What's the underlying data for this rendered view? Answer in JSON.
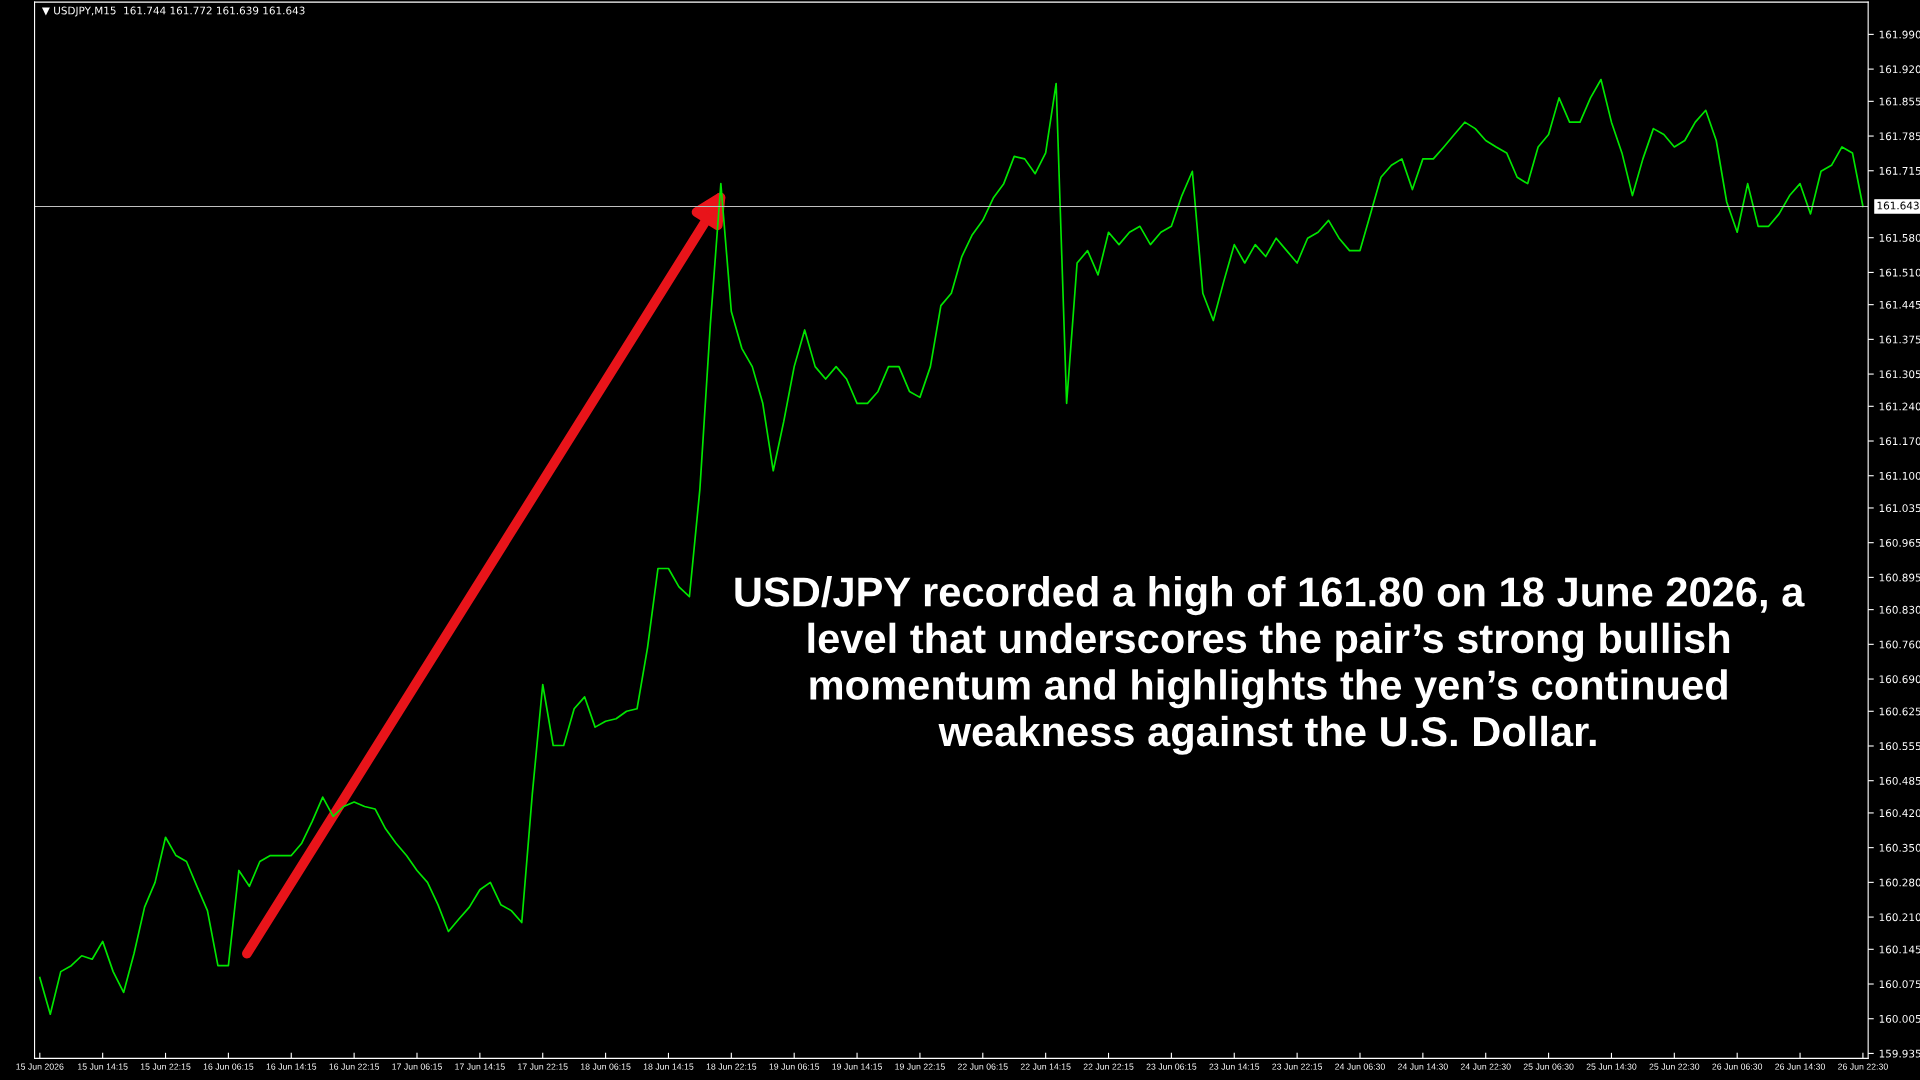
{
  "chart_data": {
    "type": "line",
    "title": "▼ USDJPY,M15  161.744 161.772 161.639 161.643",
    "categories": [
      "15 Jun 2026",
      null,
      null,
      null,
      null,
      null,
      "15 Jun 14:15",
      null,
      null,
      null,
      null,
      null,
      "15 Jun 22:15",
      null,
      null,
      null,
      null,
      null,
      "16 Jun 06:15",
      null,
      null,
      null,
      null,
      null,
      "16 Jun 14:15",
      null,
      null,
      null,
      null,
      null,
      "16 Jun 22:15",
      null,
      null,
      null,
      null,
      null,
      "17 Jun 06:15",
      null,
      null,
      null,
      null,
      null,
      "17 Jun 14:15",
      null,
      null,
      null,
      null,
      null,
      "17 Jun 22:15",
      null,
      null,
      null,
      null,
      null,
      "18 Jun 06:15",
      null,
      null,
      null,
      null,
      null,
      "18 Jun 14:15",
      null,
      null,
      null,
      null,
      null,
      "18 Jun 22:15",
      null,
      null,
      null,
      null,
      null,
      "19 Jun 06:15",
      null,
      null,
      null,
      null,
      null,
      "19 Jun 14:15",
      null,
      null,
      null,
      null,
      null,
      "19 Jun 22:15",
      null,
      null,
      null,
      null,
      null,
      "22 Jun 06:15",
      null,
      null,
      null,
      null,
      null,
      "22 Jun 14:15",
      null,
      null,
      null,
      null,
      null,
      "22 Jun 22:15",
      null,
      null,
      null,
      null,
      null,
      "23 Jun 06:15",
      null,
      null,
      null,
      null,
      null,
      "23 Jun 14:15",
      null,
      null,
      null,
      null,
      null,
      "23 Jun 22:15",
      null,
      null,
      null,
      null,
      null,
      "24 Jun 06:30",
      null,
      null,
      null,
      null,
      null,
      "24 Jun 14:30",
      null,
      null,
      null,
      null,
      null,
      "24 Jun 22:30",
      null,
      null,
      null,
      null,
      null,
      "25 Jun 06:30",
      null,
      null,
      null,
      null,
      null,
      "25 Jun 14:30",
      null,
      null,
      null,
      null,
      null,
      "25 Jun 22:30",
      null,
      null,
      null,
      null,
      null,
      "26 Jun 06:30",
      null,
      null,
      null,
      null,
      null,
      "26 Jun 14:30",
      null,
      null,
      null,
      null,
      null,
      "26 Jun 22:30"
    ],
    "series": [
      {
        "color": "#00e600",
        "values": [
          160.088,
          160.014,
          160.1,
          160.112,
          160.132,
          160.125,
          160.161,
          160.1,
          160.058,
          160.137,
          160.23,
          160.28,
          160.371,
          160.334,
          160.322,
          160.272,
          160.223,
          160.112,
          160.112,
          160.304,
          160.272,
          160.322,
          160.334,
          160.334,
          160.334,
          160.359,
          160.403,
          160.452,
          160.413,
          160.433,
          160.442,
          160.433,
          160.428,
          160.388,
          160.359,
          160.334,
          160.304,
          160.28,
          160.235,
          160.181,
          160.206,
          160.23,
          160.265,
          160.28,
          160.235,
          160.223,
          160.199,
          160.457,
          160.679,
          160.556,
          160.556,
          160.63,
          160.654,
          160.593,
          160.605,
          160.61,
          160.625,
          160.63,
          160.753,
          160.913,
          160.913,
          160.876,
          160.856,
          161.073,
          161.406,
          161.689,
          161.431,
          161.357,
          161.32,
          161.246,
          161.11,
          161.209,
          161.32,
          161.394,
          161.32,
          161.295,
          161.32,
          161.295,
          161.246,
          161.246,
          161.27,
          161.32,
          161.32,
          161.27,
          161.258,
          161.32,
          161.443,
          161.468,
          161.542,
          161.586,
          161.615,
          161.66,
          161.689,
          161.744,
          161.739,
          161.709,
          161.751,
          161.891,
          161.246,
          161.529,
          161.554,
          161.505,
          161.591,
          161.566,
          161.591,
          161.603,
          161.566,
          161.591,
          161.603,
          161.665,
          161.714,
          161.468,
          161.413,
          161.492,
          161.566,
          161.529,
          161.566,
          161.542,
          161.579,
          161.554,
          161.529,
          161.579,
          161.591,
          161.615,
          161.579,
          161.554,
          161.554,
          161.628,
          161.702,
          161.726,
          161.739,
          161.677,
          161.739,
          161.739,
          161.763,
          161.788,
          161.813,
          161.8,
          161.776,
          161.763,
          161.751,
          161.702,
          161.689,
          161.763,
          161.788,
          161.862,
          161.813,
          161.813,
          161.862,
          161.899,
          161.813,
          161.751,
          161.665,
          161.739,
          161.8,
          161.788,
          161.763,
          161.776,
          161.813,
          161.837,
          161.776,
          161.652,
          161.591,
          161.689,
          161.603,
          161.603,
          161.628,
          161.665,
          161.689,
          161.628,
          161.714,
          161.726,
          161.763,
          161.751,
          161.643
        ]
      }
    ],
    "ylim": [
      159.925,
      162.055
    ],
    "yticks": [
      {
        "value": 161.99,
        "label": "161.990"
      },
      {
        "value": 161.92,
        "label": "161.920"
      },
      161.855,
      161.785,
      161.715,
      {
        "value": 161.58,
        "label": "161.580"
      },
      {
        "value": 161.51,
        "label": "161.510"
      },
      161.445,
      161.375,
      161.305,
      {
        "value": 161.24,
        "label": "161.240"
      },
      {
        "value": 161.17,
        "label": "161.170"
      },
      {
        "value": 161.1,
        "label": "161.100"
      },
      161.035,
      160.965,
      160.895,
      {
        "value": 160.83,
        "label": "160.830"
      },
      {
        "value": 160.76,
        "label": "160.760"
      },
      {
        "value": 160.69,
        "label": "160.690"
      },
      160.625,
      160.555,
      160.485,
      {
        "value": 160.42,
        "label": "160.420"
      },
      {
        "value": 160.35,
        "label": "160.350"
      },
      {
        "value": 160.28,
        "label": "160.280"
      },
      {
        "value": 160.21,
        "label": "160.210"
      },
      160.145,
      160.075,
      160.005,
      159.935
    ],
    "ref_lines": [
      {
        "axis": "y",
        "value": 161.643,
        "label": "161.643",
        "color": "#c0c0c0"
      }
    ],
    "annotations": [
      "USD/JPY recorded a high of 161.80 on 18 June 2026, a\nlevel that underscores the pair’s strong bullish\nmomentum and highlights the yen’s continued\nweakness against the U.S. Dollar."
    ],
    "grid": false,
    "legend": false
  }
}
